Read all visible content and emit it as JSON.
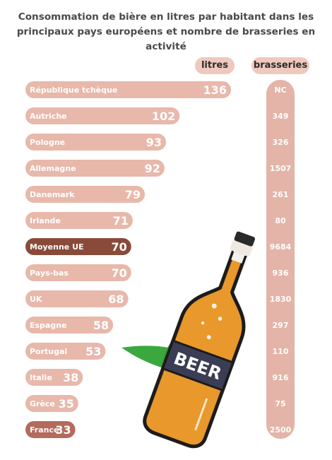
{
  "chart_data": {
    "type": "bar",
    "title": "Consommation de bière en litres par habitant dans les principaux pays européens et nombre de brasseries en activité",
    "columns": {
      "litres": "litres",
      "brasseries": "brasseries"
    },
    "categories": [
      "République tchèque",
      "Autriche",
      "Pologne",
      "Allemagne",
      "Danemark",
      "Irlande",
      "Moyenne UE",
      "Pays-bas",
      "UK",
      "Espagne",
      "Portugal",
      "Italie",
      "Grèce",
      "France"
    ],
    "series": [
      {
        "name": "litres",
        "values": [
          136,
          102,
          93,
          92,
          79,
          71,
          70,
          70,
          68,
          58,
          53,
          38,
          35,
          33
        ]
      },
      {
        "name": "brasseries",
        "values": [
          "NC",
          "349",
          "326",
          "1507",
          "261",
          "80",
          "9684",
          "936",
          "1830",
          "297",
          "110",
          "916",
          "75",
          "2500"
        ]
      }
    ],
    "highlight": {
      "Moyenne UE": "#8a4a3a",
      "France": "#b56a5c"
    },
    "colors": {
      "bar": "#e8b8ab",
      "brew_column": "#e3b4a7",
      "pill": "#efc9bd",
      "bottle_glass": "#e9982c",
      "bottle_label": "#3b3d55",
      "leaf": "#3aa83e"
    },
    "bottle_text": "BEER"
  }
}
